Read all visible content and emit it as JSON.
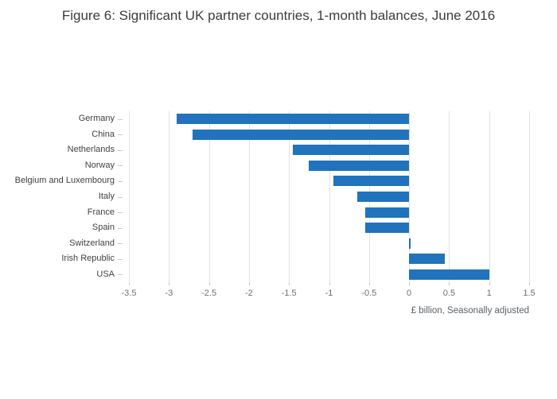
{
  "title": "Figure 6: Significant UK partner countries, 1-month balances, June 2016",
  "chart_data": {
    "type": "bar",
    "orientation": "horizontal",
    "title": "Figure 6: Significant UK partner countries, 1-month balances, June 2016",
    "categories": [
      "Germany",
      "China",
      "Netherlands",
      "Norway",
      "Belgium and Luxembourg",
      "Italy",
      "France",
      "Spain",
      "Switzerland",
      "Irish Republic",
      "USA"
    ],
    "values": [
      -2.9,
      -2.7,
      -1.45,
      -1.25,
      -0.95,
      -0.65,
      -0.55,
      -0.55,
      0.02,
      0.45,
      1.0
    ],
    "xlabel": "£ billion, Seasonally adjusted",
    "ylabel": "",
    "xlim": [
      -3.5,
      1.5
    ],
    "xticks": [
      {
        "value": -3.5,
        "label": "-3.5"
      },
      {
        "value": -3,
        "label": "-3"
      },
      {
        "value": -2.5,
        "label": "-2.5"
      },
      {
        "value": -2,
        "label": "-2"
      },
      {
        "value": -1.5,
        "label": "-1.5"
      },
      {
        "value": -1,
        "label": "-1"
      },
      {
        "value": -0.5,
        "label": "-0.5"
      },
      {
        "value": 0,
        "label": "0"
      },
      {
        "value": 0.5,
        "label": "0.5"
      },
      {
        "value": 1,
        "label": "1"
      },
      {
        "value": 1.5,
        "label": "1.5"
      }
    ],
    "bar_color": "#2073bc",
    "grid": true,
    "legend": "none"
  }
}
